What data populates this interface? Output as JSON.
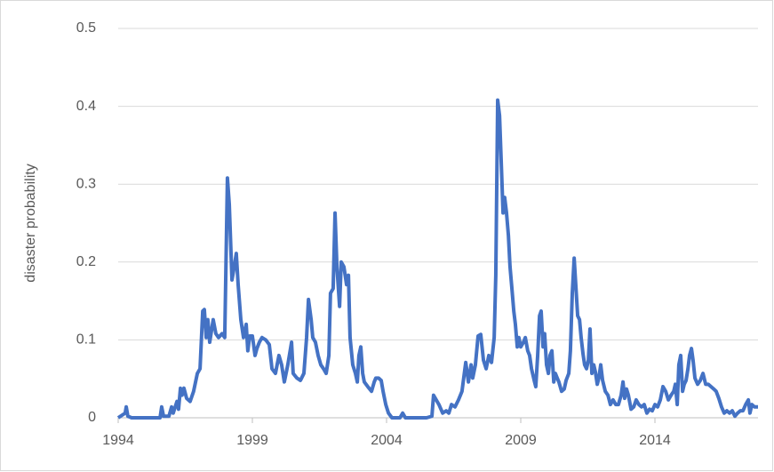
{
  "chart_data": {
    "type": "line",
    "y_label": "disaster probability",
    "color": "#4472c4",
    "grid": true,
    "xlim": [
      1994,
      2017.84
    ],
    "xticks": [
      1994,
      1999,
      2004,
      2009,
      2014
    ],
    "ylim": [
      0,
      0.5
    ],
    "yticks": [
      0,
      0.1,
      0.2,
      0.3,
      0.4,
      0.5
    ],
    "x": [
      1994,
      1994.26,
      1994.3,
      1994.36,
      1994.5,
      1995.56,
      1995.62,
      1995.69,
      1995.89,
      1995.99,
      1996.05,
      1996.19,
      1996.25,
      1996.32,
      1996.38,
      1996.45,
      1996.55,
      1996.68,
      1996.81,
      1996.95,
      1997.05,
      1997.15,
      1997.21,
      1997.28,
      1997.34,
      1997.41,
      1997.54,
      1997.64,
      1997.74,
      1997.87,
      1997.97,
      1998.07,
      1998.14,
      1998.24,
      1998.3,
      1998.4,
      1998.47,
      1998.57,
      1998.67,
      1998.77,
      1998.83,
      1998.9,
      1999,
      1999.1,
      1999.17,
      1999.26,
      1999.36,
      1999.5,
      1999.63,
      1999.73,
      1999.86,
      1999.99,
      2000.09,
      2000.19,
      2000.32,
      2000.46,
      2000.52,
      2000.66,
      2000.79,
      2000.92,
      2001.02,
      2001.09,
      2001.19,
      2001.25,
      2001.35,
      2001.45,
      2001.55,
      2001.65,
      2001.75,
      2001.85,
      2001.91,
      2002.01,
      2002.08,
      2002.15,
      2002.25,
      2002.31,
      2002.41,
      2002.51,
      2002.58,
      2002.64,
      2002.74,
      2002.84,
      2002.91,
      2002.97,
      2003.04,
      2003.11,
      2003.17,
      2003.3,
      2003.44,
      2003.54,
      2003.6,
      2003.7,
      2003.8,
      2003.87,
      2003.97,
      2004.07,
      2004.2,
      2004.5,
      2004.6,
      2004.7,
      2005.49,
      2005.69,
      2005.75,
      2005.85,
      2005.95,
      2006.09,
      2006.22,
      2006.32,
      2006.42,
      2006.55,
      2006.68,
      2006.81,
      2006.95,
      2007.05,
      2007.15,
      2007.21,
      2007.31,
      2007.41,
      2007.51,
      2007.61,
      2007.71,
      2007.81,
      2007.91,
      2008.01,
      2008.07,
      2008.14,
      2008.21,
      2008.27,
      2008.34,
      2008.4,
      2008.47,
      2008.54,
      2008.6,
      2008.67,
      2008.74,
      2008.8,
      2008.87,
      2008.93,
      2009,
      2009.1,
      2009.17,
      2009.26,
      2009.33,
      2009.4,
      2009.5,
      2009.56,
      2009.63,
      2009.7,
      2009.76,
      2009.83,
      2009.89,
      2009.96,
      2010.03,
      2010.09,
      2010.16,
      2010.23,
      2010.29,
      2010.36,
      2010.42,
      2010.52,
      2010.62,
      2010.69,
      2010.79,
      2010.85,
      2010.92,
      2010.99,
      2011.05,
      2011.12,
      2011.19,
      2011.25,
      2011.32,
      2011.38,
      2011.45,
      2011.52,
      2011.58,
      2011.65,
      2011.72,
      2011.78,
      2011.85,
      2011.91,
      2011.98,
      2012.05,
      2012.15,
      2012.25,
      2012.34,
      2012.44,
      2012.54,
      2012.64,
      2012.74,
      2012.81,
      2012.87,
      2012.94,
      2013.01,
      2013.11,
      2013.21,
      2013.3,
      2013.4,
      2013.5,
      2013.6,
      2013.7,
      2013.8,
      2013.9,
      2014,
      2014.1,
      2014.2,
      2014.3,
      2014.4,
      2014.5,
      2014.6,
      2014.7,
      2014.76,
      2014.83,
      2014.89,
      2014.96,
      2015.03,
      2015.09,
      2015.16,
      2015.23,
      2015.29,
      2015.36,
      2015.42,
      2015.49,
      2015.59,
      2015.69,
      2015.79,
      2015.89,
      2015.99,
      2016.09,
      2016.19,
      2016.28,
      2016.38,
      2016.48,
      2016.58,
      2016.68,
      2016.78,
      2016.88,
      2016.98,
      2017.08,
      2017.18,
      2017.28,
      2017.38,
      2017.48,
      2017.54,
      2017.61,
      2017.71,
      2017.84
    ],
    "values": [
      0,
      0.006,
      0.014,
      0.002,
      0,
      0,
      0.014,
      0.002,
      0.002,
      0.014,
      0.006,
      0.021,
      0.011,
      0.038,
      0.029,
      0.038,
      0.025,
      0.021,
      0.034,
      0.057,
      0.063,
      0.137,
      0.139,
      0.103,
      0.126,
      0.097,
      0.126,
      0.108,
      0.103,
      0.108,
      0.103,
      0.308,
      0.274,
      0.177,
      0.189,
      0.211,
      0.171,
      0.126,
      0.103,
      0.12,
      0.086,
      0.105,
      0.105,
      0.08,
      0.089,
      0.097,
      0.103,
      0.1,
      0.094,
      0.063,
      0.057,
      0.08,
      0.068,
      0.046,
      0.068,
      0.097,
      0.057,
      0.051,
      0.048,
      0.057,
      0.103,
      0.152,
      0.126,
      0.103,
      0.097,
      0.08,
      0.068,
      0.063,
      0.057,
      0.08,
      0.16,
      0.166,
      0.263,
      0.194,
      0.143,
      0.2,
      0.194,
      0.171,
      0.183,
      0.103,
      0.068,
      0.057,
      0.046,
      0.08,
      0.091,
      0.057,
      0.046,
      0.04,
      0.034,
      0.046,
      0.051,
      0.051,
      0.048,
      0.034,
      0.017,
      0.006,
      0,
      0,
      0.006,
      0,
      0,
      0.002,
      0.029,
      0.023,
      0.017,
      0.006,
      0.009,
      0.006,
      0.017,
      0.014,
      0.023,
      0.034,
      0.071,
      0.046,
      0.068,
      0.051,
      0.068,
      0.105,
      0.107,
      0.074,
      0.063,
      0.08,
      0.071,
      0.103,
      0.183,
      0.408,
      0.388,
      0.331,
      0.263,
      0.283,
      0.263,
      0.234,
      0.194,
      0.166,
      0.137,
      0.12,
      0.091,
      0.103,
      0.091,
      0.097,
      0.103,
      0.086,
      0.08,
      0.063,
      0.048,
      0.04,
      0.08,
      0.131,
      0.137,
      0.091,
      0.108,
      0.068,
      0.057,
      0.08,
      0.086,
      0.046,
      0.057,
      0.051,
      0.046,
      0.034,
      0.037,
      0.048,
      0.057,
      0.086,
      0.16,
      0.205,
      0.171,
      0.131,
      0.126,
      0.103,
      0.082,
      0.068,
      0.063,
      0.074,
      0.114,
      0.057,
      0.068,
      0.059,
      0.043,
      0.051,
      0.068,
      0.048,
      0.034,
      0.029,
      0.017,
      0.023,
      0.017,
      0.017,
      0.029,
      0.046,
      0.025,
      0.037,
      0.029,
      0.011,
      0.014,
      0.023,
      0.017,
      0.014,
      0.017,
      0.006,
      0.011,
      0.009,
      0.017,
      0.014,
      0.023,
      0.04,
      0.034,
      0.023,
      0.029,
      0.034,
      0.043,
      0.017,
      0.068,
      0.08,
      0.034,
      0.043,
      0.048,
      0.063,
      0.08,
      0.089,
      0.074,
      0.051,
      0.043,
      0.048,
      0.057,
      0.043,
      0.043,
      0.04,
      0.037,
      0.034,
      0.025,
      0.014,
      0.006,
      0.009,
      0.006,
      0.009,
      0.002,
      0.006,
      0.009,
      0.009,
      0.017,
      0.023,
      0.006,
      0.017,
      0.014,
      0.014
    ]
  }
}
